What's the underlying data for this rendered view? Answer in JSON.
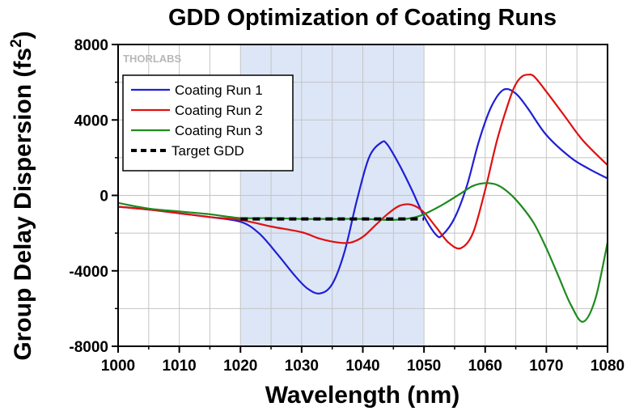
{
  "chart_data": {
    "type": "line",
    "title": "GDD Optimization of Coating Runs",
    "xlabel": "Wavelength (nm)",
    "ylabel_main": "Group Delay Dispersion (fs",
    "ylabel_sup": "2",
    "ylabel_close": ")",
    "xlim": [
      1000,
      1080
    ],
    "ylim": [
      -8000,
      8000
    ],
    "x_ticks": [
      1000,
      1010,
      1020,
      1030,
      1040,
      1050,
      1060,
      1070,
      1080
    ],
    "y_ticks": [
      -8000,
      -4000,
      0,
      4000,
      8000
    ],
    "grid": true,
    "highlight_band": {
      "x_start": 1020,
      "x_end": 1050,
      "color": "#dce6f7"
    },
    "legend_position": "top-left",
    "logo": "THORLABS",
    "series": [
      {
        "name": "Coating Run 1",
        "color": "#1f1fd6",
        "style": "solid",
        "x": [
          1000,
          1005,
          1010,
          1015,
          1020,
          1023,
          1026,
          1029,
          1031,
          1033,
          1035,
          1037,
          1039,
          1041,
          1043,
          1044,
          1046,
          1048,
          1050,
          1052,
          1053,
          1055,
          1057,
          1059,
          1061,
          1063,
          1065,
          1067,
          1070,
          1074,
          1077,
          1080
        ],
        "y": [
          -600,
          -750,
          -950,
          -1150,
          -1400,
          -2000,
          -3100,
          -4300,
          -4950,
          -5200,
          -4700,
          -3000,
          -300,
          2000,
          2800,
          2700,
          1600,
          300,
          -1100,
          -2100,
          -2100,
          -1200,
          500,
          2900,
          4700,
          5600,
          5400,
          4600,
          3200,
          2000,
          1400,
          900
        ]
      },
      {
        "name": "Coating Run 2",
        "color": "#e01010",
        "style": "solid",
        "x": [
          1000,
          1005,
          1010,
          1015,
          1020,
          1025,
          1030,
          1033,
          1036,
          1038,
          1040,
          1042,
          1044,
          1046,
          1048,
          1050,
          1052,
          1054,
          1056,
          1058,
          1060,
          1062,
          1064,
          1065,
          1066,
          1067,
          1068,
          1070,
          1073,
          1076,
          1080
        ],
        "y": [
          -600,
          -750,
          -950,
          -1150,
          -1300,
          -1650,
          -1950,
          -2300,
          -2500,
          -2500,
          -2200,
          -1600,
          -1000,
          -550,
          -500,
          -900,
          -1700,
          -2500,
          -2800,
          -2000,
          300,
          3000,
          5100,
          5900,
          6300,
          6400,
          6300,
          5500,
          4200,
          2900,
          1600
        ]
      },
      {
        "name": "Coating Run 3",
        "color": "#1d8a1d",
        "style": "solid",
        "x": [
          1000,
          1005,
          1010,
          1015,
          1020,
          1025,
          1030,
          1035,
          1040,
          1045,
          1048,
          1050,
          1053,
          1056,
          1058,
          1060,
          1062,
          1064,
          1066,
          1068,
          1070,
          1072,
          1074,
          1076,
          1078,
          1080
        ],
        "y": [
          -400,
          -700,
          -850,
          -1000,
          -1200,
          -1200,
          -1250,
          -1250,
          -1250,
          -1300,
          -1200,
          -1000,
          -500,
          100,
          500,
          650,
          550,
          100,
          -600,
          -1500,
          -2800,
          -4300,
          -5800,
          -6700,
          -5500,
          -2500
        ]
      },
      {
        "name": "Target GDD",
        "color": "#000000",
        "style": "dashed",
        "x": [
          1020,
          1025,
          1030,
          1035,
          1040,
          1045,
          1050
        ],
        "y": [
          -1250,
          -1250,
          -1250,
          -1250,
          -1250,
          -1250,
          -1250
        ]
      }
    ]
  }
}
